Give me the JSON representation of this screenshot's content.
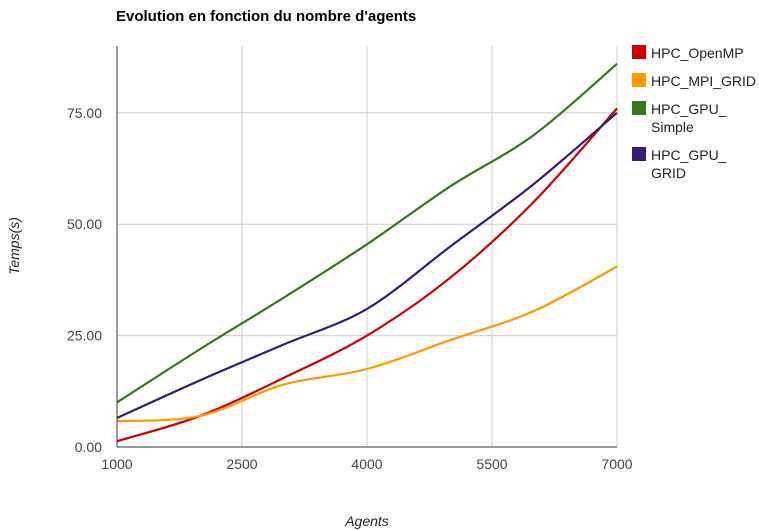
{
  "chart_data": {
    "type": "line",
    "title": "Evolution en fonction du nombre d'agents",
    "xlabel": "Agents",
    "ylabel": "Temps(s)",
    "xlim": [
      1000,
      7000
    ],
    "ylim": [
      0,
      90
    ],
    "x_ticks": [
      "1000",
      "2500",
      "4000",
      "5500",
      "7000"
    ],
    "y_ticks": [
      "0.00",
      "25.00",
      "50.00",
      "75.00"
    ],
    "grid": true,
    "legend_position": "right",
    "x": [
      1000,
      2000,
      3000,
      4000,
      5000,
      6000,
      7000
    ],
    "series": [
      {
        "name": "HPC_OpenMP",
        "legend_lines": [
          "HPC_OpenMP"
        ],
        "color": "#cc0000",
        "values": [
          1.3,
          7,
          15.5,
          25,
          38,
          55,
          76
        ]
      },
      {
        "name": "HPC_MPI_GRID",
        "legend_lines": [
          "HPC_MPI_GRID"
        ],
        "color": "#ff9900",
        "values": [
          5.8,
          7,
          14,
          17.5,
          24,
          30.5,
          40.5
        ]
      },
      {
        "name": "HPC_GPU_Simple",
        "legend_lines": [
          "HPC_GPU_",
          "Simple"
        ],
        "color": "#38761d",
        "values": [
          10,
          22,
          33.5,
          45.5,
          58.5,
          70,
          86
        ]
      },
      {
        "name": "HPC_GPU_GRID",
        "legend_lines": [
          "HPC_GPU_",
          "GRID"
        ],
        "color": "#351c75",
        "values": [
          6.5,
          15,
          23,
          31,
          45,
          59,
          75
        ]
      }
    ]
  }
}
